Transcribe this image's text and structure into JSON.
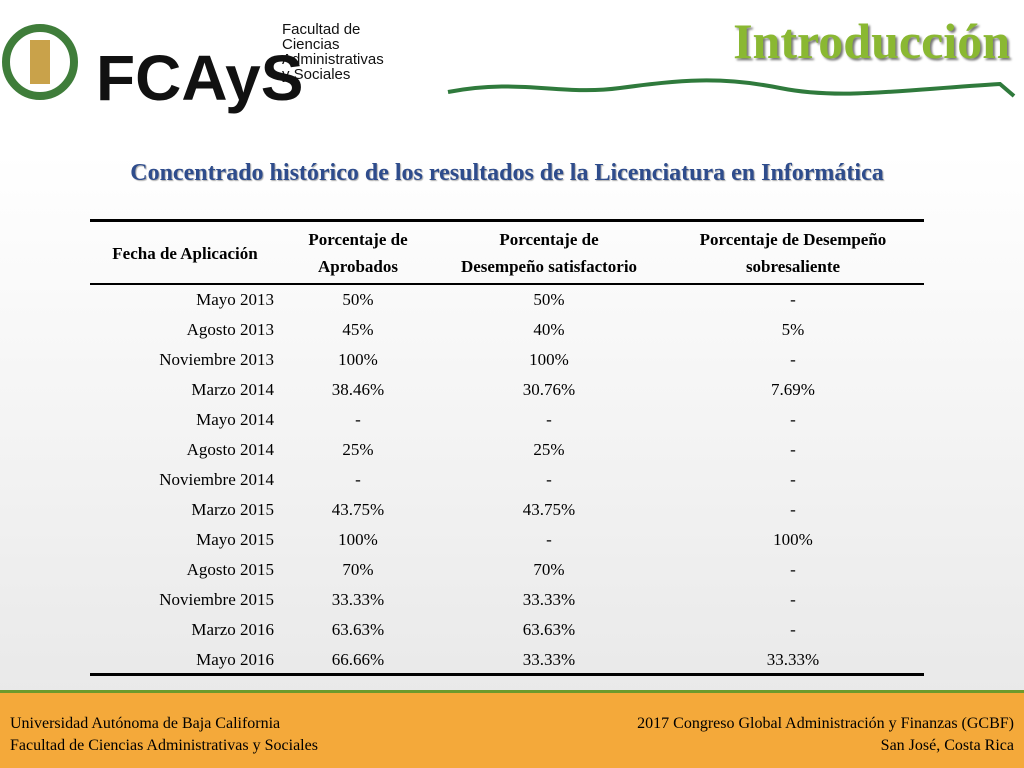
{
  "logo": {
    "acronym": "FCAyS",
    "name_lines": [
      "Facultad de",
      "Ciencias",
      "Administrativas",
      "y Sociales"
    ]
  },
  "header": {
    "title": "Introducción",
    "subtitle": "Concentrado histórico de los resultados de la Licenciatura en Informática"
  },
  "table": {
    "columns": [
      [
        "Fecha de Aplicación"
      ],
      [
        "Porcentaje de",
        "Aprobados"
      ],
      [
        "Porcentaje de",
        "Desempeño satisfactorio"
      ],
      [
        "Porcentaje de Desempeño",
        "sobresaliente"
      ]
    ],
    "rows": [
      [
        "Mayo 2013",
        "50%",
        "50%",
        "-"
      ],
      [
        "Agosto 2013",
        "45%",
        "40%",
        "5%"
      ],
      [
        "Noviembre 2013",
        "100%",
        "100%",
        "-"
      ],
      [
        "Marzo 2014",
        "38.46%",
        "30.76%",
        "7.69%"
      ],
      [
        "Mayo 2014",
        "-",
        "-",
        "-"
      ],
      [
        "Agosto 2014",
        "25%",
        "25%",
        "-"
      ],
      [
        "Noviembre 2014",
        "-",
        "-",
        "-"
      ],
      [
        "Marzo 2015",
        "43.75%",
        "43.75%",
        "-"
      ],
      [
        "Mayo 2015",
        "100%",
        "-",
        "100%"
      ],
      [
        "Agosto 2015",
        "70%",
        "70%",
        "-"
      ],
      [
        "Noviembre 2015",
        "33.33%",
        "33.33%",
        "-"
      ],
      [
        "Marzo 2016",
        "63.63%",
        "63.63%",
        "-"
      ],
      [
        "Mayo 2016",
        "66.66%",
        "33.33%",
        "33.33%"
      ]
    ]
  },
  "footer": {
    "left": [
      "Universidad Autónoma de Baja California",
      "Facultad de Ciencias Administrativas y Sociales"
    ],
    "right": [
      "2017 Congreso Global Administración y Finanzas (GCBF)",
      "San José, Costa Rica"
    ]
  }
}
